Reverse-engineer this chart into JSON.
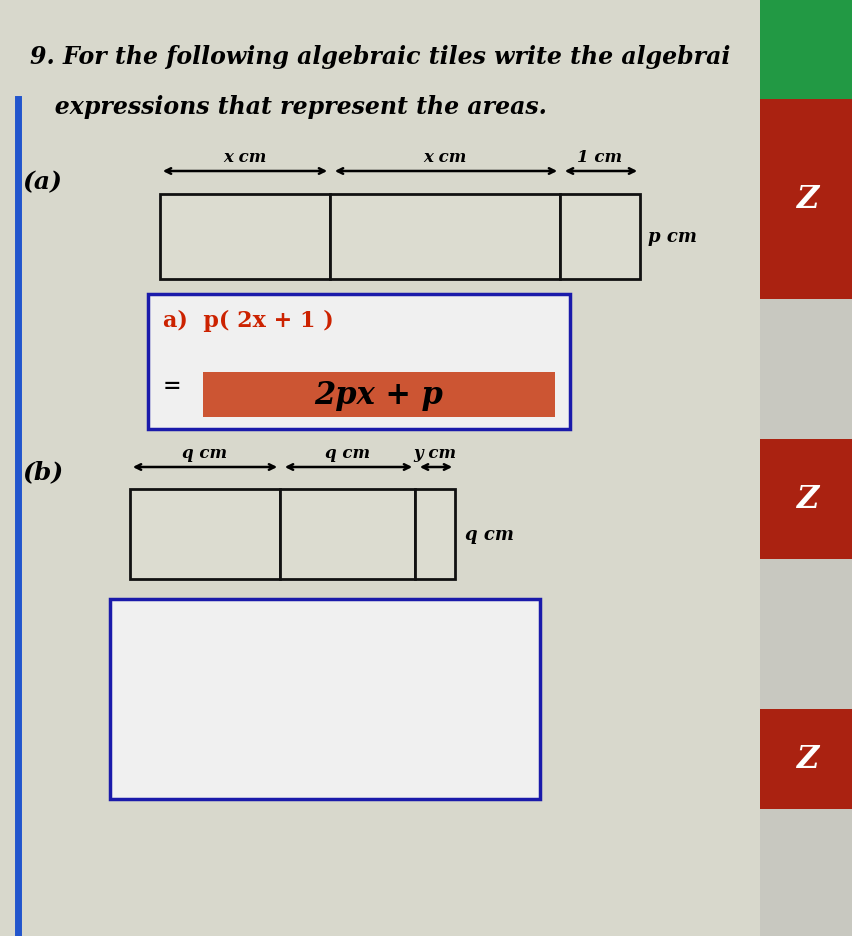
{
  "bg_color": "#c8c8c0",
  "title_line1": "9. For the following algebraic tiles write the algebrai",
  "title_line2": "   expressions that represent the areas.",
  "part_a_label": "(a)",
  "part_b_label": "(b)",
  "answer_box_a_line1": "a)  p( 2x + 1 )",
  "answer_box_a_line2": "=",
  "answer_highlight": "2px + p",
  "part_b_arrow_labels": [
    "q cm",
    "q cm",
    "y cm"
  ],
  "part_b_side_label": "q cm",
  "part_a_arrow_labels": [
    "x cm",
    "x cm",
    "1 cm"
  ],
  "part_a_side_label": "p cm",
  "answer_box_border": "#1a1aaa",
  "answer_text_color": "#cc2200",
  "highlight_bg": "#cc5533",
  "highlight_text": "#1a0a00",
  "rect_fill": "#dcdcd0",
  "rect_border": "#111111",
  "white_bg": "#f0f0f0",
  "left_bar_color": "#2255cc",
  "right_red_color": "#aa2211",
  "right_green_color": "#229944",
  "fig_width": 8.53,
  "fig_height": 9.37,
  "dpi": 100
}
